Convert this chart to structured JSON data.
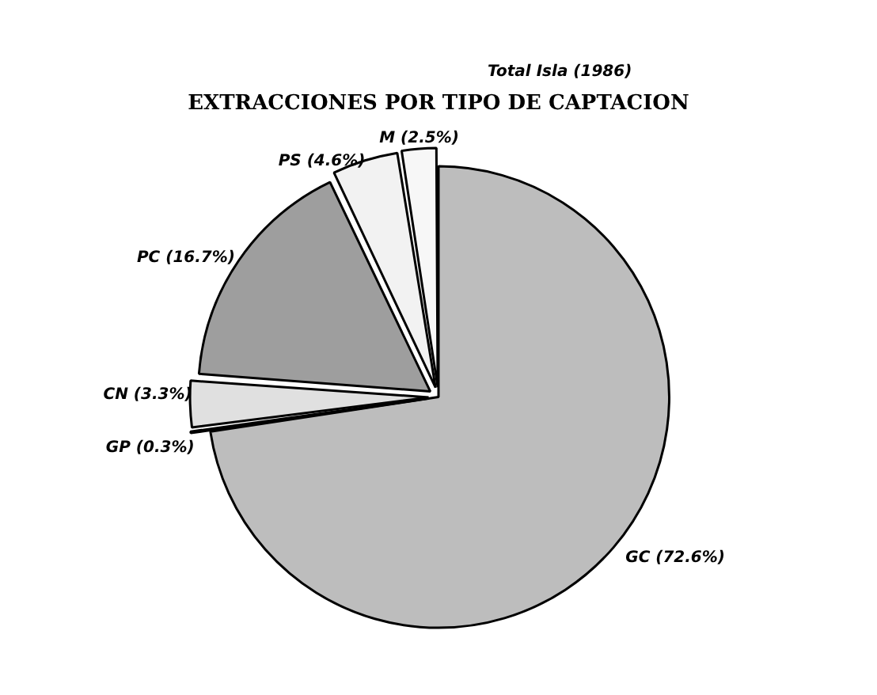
{
  "chart_data": {
    "type": "pie",
    "title": "EXTRACCIONES POR TIPO DE CAPTACION",
    "categories": [
      "GC (72.6%)",
      "GP (0.3%)",
      "CN (3.3%)",
      "PC (16.7%)",
      "PS (4.6%)",
      "M (2.5%)"
    ],
    "values": [
      72.6,
      0.3,
      3.3,
      16.7,
      4.6,
      2.5
    ],
    "colors": [
      "#bdbdbd",
      "#d0d0d0",
      "#e0e0e0",
      "#9e9e9e",
      "#f2f2f2",
      "#f7f7f7"
    ],
    "annotations": [
      "Total Isla (1986)"
    ],
    "legend": false
  }
}
